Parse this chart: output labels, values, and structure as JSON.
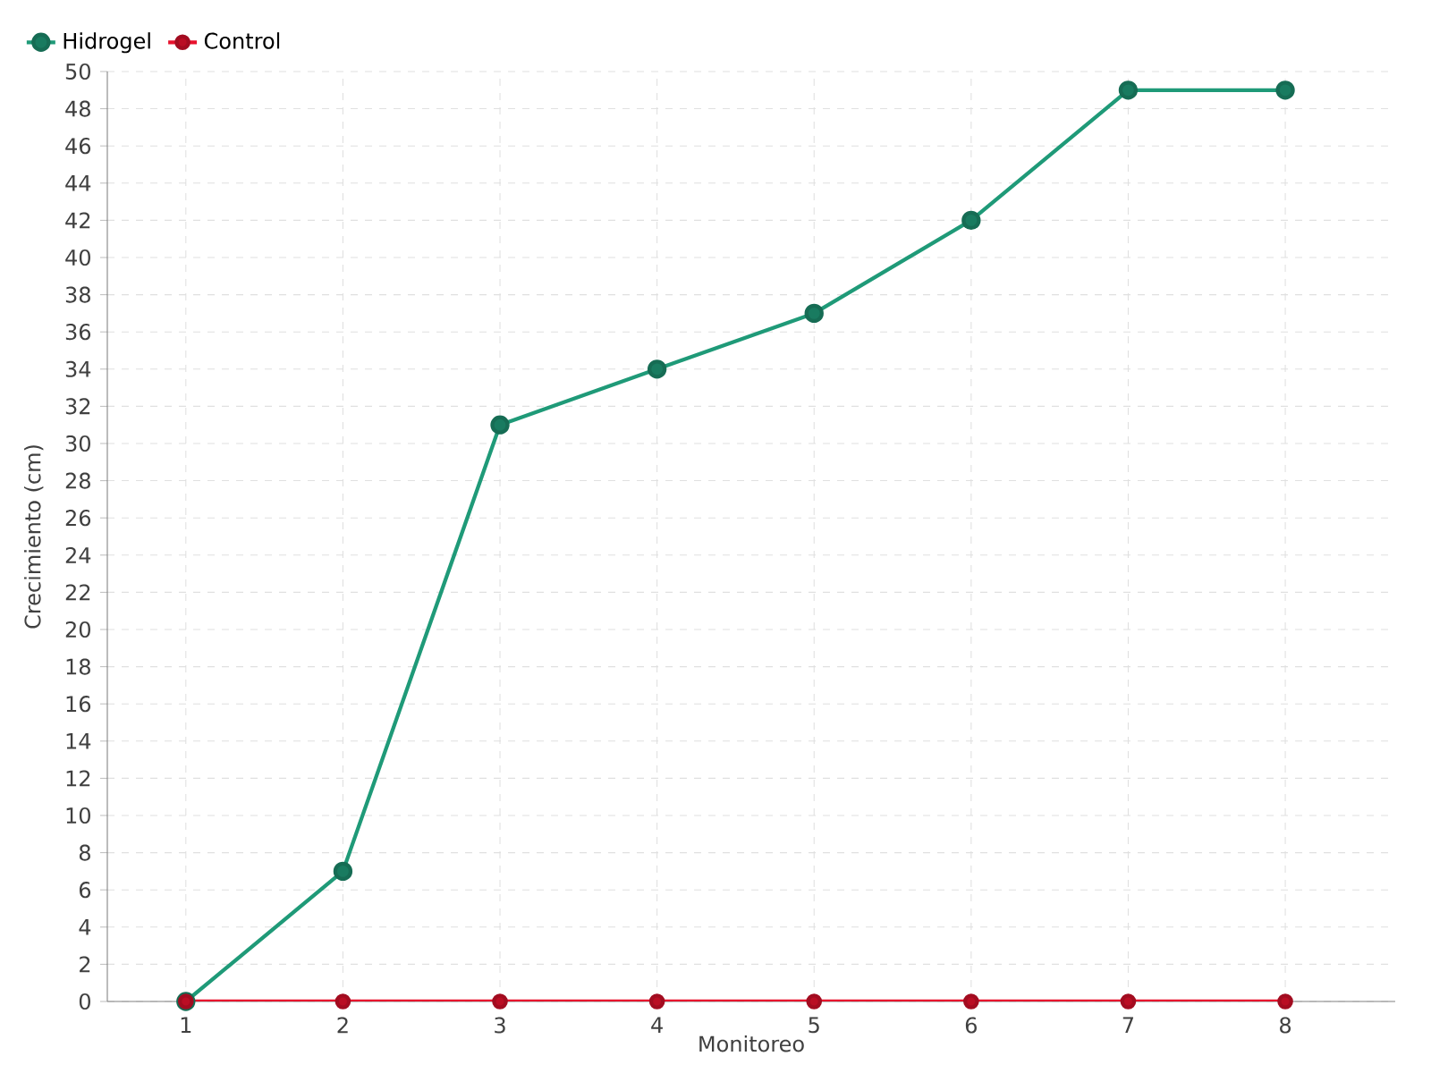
{
  "chart_data": {
    "type": "line",
    "xlabel": "Monitoreo",
    "ylabel": "Crecimiento (cm)",
    "categories": [
      "1",
      "2",
      "3",
      "4",
      "5",
      "6",
      "7",
      "8"
    ],
    "series": [
      {
        "name": "Hidrogel",
        "color": "#1f9a78",
        "values": [
          0,
          7,
          31,
          34,
          37,
          42,
          49,
          49
        ]
      },
      {
        "name": "Control",
        "color": "#e8112d",
        "values": [
          0,
          0,
          0,
          0,
          0,
          0,
          0,
          0
        ]
      }
    ],
    "ylim": [
      0,
      50
    ],
    "yticks": [
      0,
      2,
      4,
      6,
      8,
      10,
      12,
      14,
      16,
      18,
      20,
      22,
      24,
      26,
      28,
      30,
      32,
      34,
      36,
      38,
      40,
      42,
      44,
      46,
      48,
      50
    ],
    "grid": true,
    "legend": "top left",
    "marker": "circle",
    "line_style": "solid"
  }
}
